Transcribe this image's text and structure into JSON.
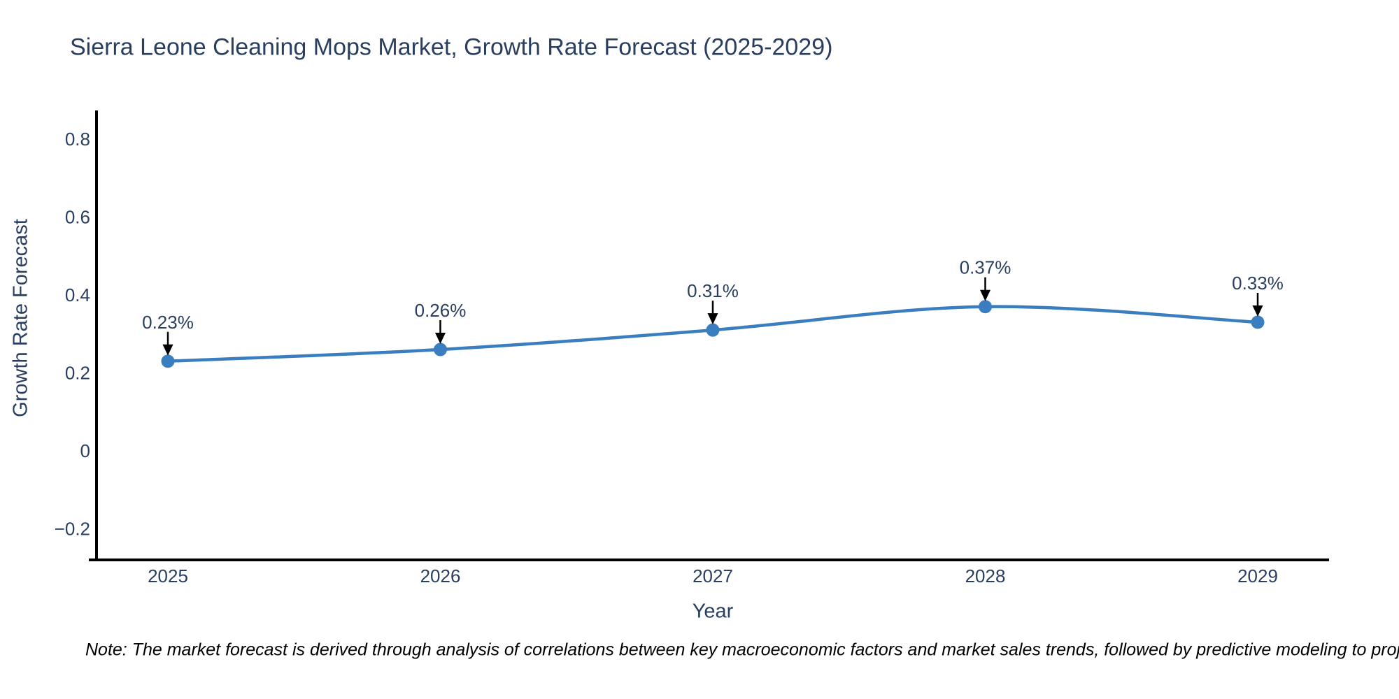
{
  "title": "Sierra Leone Cleaning Mops Market, Growth Rate Forecast (2025-2029)",
  "note": "Note: The market forecast is derived through analysis of correlations between key macroeconomic factors and market sales trends, followed by predictive modeling to project future sa",
  "colors": {
    "line": "#3a7ebf",
    "marker": "#3a7ebf",
    "axis_line": "#000000",
    "title_text": "#2a3f5f",
    "tick_text": "#2a3f5f",
    "annotation_text": "#2a3f5f",
    "annotation_arrow": "#000000",
    "note_text": "#000000",
    "background": "#ffffff"
  },
  "chart_data": {
    "type": "line",
    "title": "Sierra Leone Cleaning Mops Market, Growth Rate Forecast (2025-2029)",
    "x": [
      2025,
      2026,
      2027,
      2028,
      2029
    ],
    "x_ticks": [
      "2025",
      "2026",
      "2027",
      "2028",
      "2029"
    ],
    "series": [
      {
        "name": "Growth Rate Forecast",
        "values": [
          0.23,
          0.26,
          0.31,
          0.37,
          0.33
        ]
      }
    ],
    "point_labels": [
      "0.23%",
      "0.26%",
      "0.31%",
      "0.37%",
      "0.33%"
    ],
    "xlabel": "Year",
    "ylabel": "Growth Rate Forecast",
    "y_ticks": [
      "0.8",
      "0.6",
      "0.4",
      "0.2",
      "0",
      "−0.2"
    ],
    "y_tick_values": [
      0.8,
      0.6,
      0.4,
      0.2,
      0,
      -0.2
    ],
    "ylim": [
      -0.284,
      0.874
    ],
    "grid": false,
    "legend_position": "none",
    "line_shape": "spline",
    "annotations_style": "value labels with downward arrows to markers"
  }
}
